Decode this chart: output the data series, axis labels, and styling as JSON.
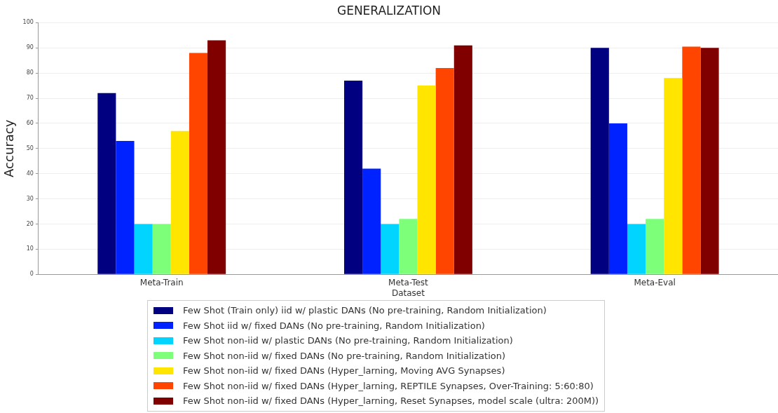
{
  "chart_data": {
    "type": "bar",
    "title": "GENERALIZATION",
    "xlabel": "Dataset",
    "ylabel": "Accuracy",
    "categories": [
      "Meta-Train",
      "Meta-Test",
      "Meta-Eval"
    ],
    "series": [
      {
        "name": "Few Shot (Train only) iid w/ plastic DANs (No pre-training, Random Initialization)",
        "color": "#000080",
        "values": [
          72,
          77,
          90
        ]
      },
      {
        "name": "Few Shot iid w/ fixed DANs (No pre-training, Random Initialization)",
        "color": "#0022ff",
        "values": [
          53,
          42,
          60
        ]
      },
      {
        "name": "Few Shot non-iid w/ plastic DANs (No pre-training, Random Initialization)",
        "color": "#00d4ff",
        "values": [
          20,
          20,
          20
        ]
      },
      {
        "name": "Few Shot non-iid w/ fixed DANs (No pre-training, Random Initialization)",
        "color": "#7dff7a",
        "values": [
          20,
          22,
          22
        ]
      },
      {
        "name": "Few Shot non-iid w/ fixed DANs (Hyper_larning, Moving AVG Synapses)",
        "color": "#ffe500",
        "values": [
          57,
          75,
          78
        ]
      },
      {
        "name": "Few Shot non-iid w/ fixed DANs (Hyper_larning, REPTILE Synapses, Over-Training: 5:60:80)",
        "color": "#ff4500",
        "values": [
          88,
          82,
          90.5
        ]
      },
      {
        "name": "Few Shot non-iid w/ fixed DANs (Hyper_larning, Reset Synapses, model scale (ultra: 200M))",
        "color": "#800000",
        "values": [
          93,
          91,
          90
        ]
      }
    ],
    "ylim": [
      0,
      100
    ],
    "yticks": [
      0,
      10,
      20,
      30,
      40,
      50,
      60,
      70,
      80,
      90,
      100
    ],
    "grid": "y",
    "legend": "bottom"
  }
}
